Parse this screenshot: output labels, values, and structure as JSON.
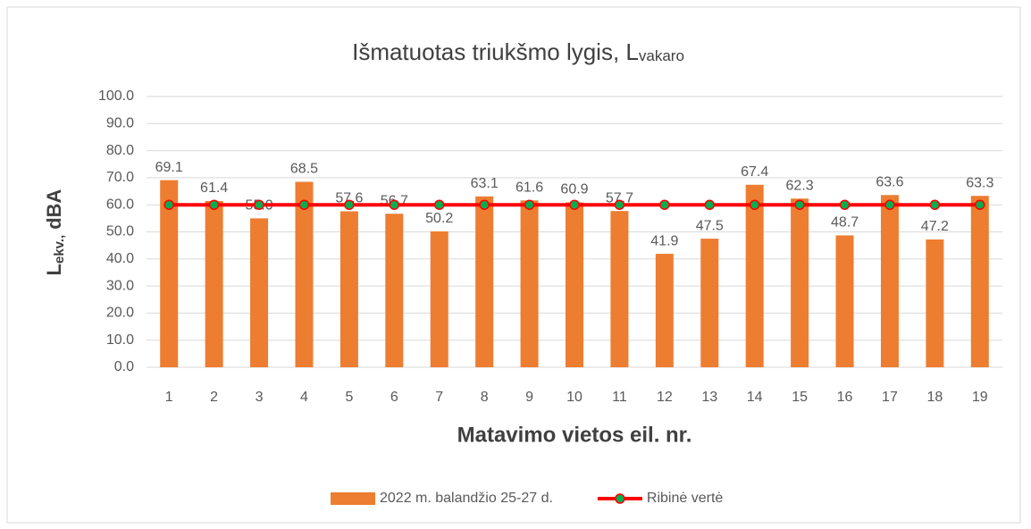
{
  "chart_data": {
    "type": "bar",
    "title": "Išmatuotas triukšmo lygis, L",
    "title_subscript": "vakaro",
    "y_label": "L",
    "y_label_subscript": "ekv.,",
    "y_label_unit": "dBA",
    "x_label": "Matavimo vietos eil. nr.",
    "categories": [
      "1",
      "2",
      "3",
      "4",
      "5",
      "6",
      "7",
      "8",
      "9",
      "10",
      "11",
      "12",
      "13",
      "14",
      "15",
      "16",
      "17",
      "18",
      "19"
    ],
    "series": [
      {
        "name": "2022 m. balandžio 25-27 d.",
        "type": "bar",
        "color": "#ed7d31",
        "values": [
          69.1,
          61.4,
          55.0,
          68.5,
          57.6,
          56.7,
          50.2,
          63.1,
          61.6,
          60.9,
          57.7,
          41.9,
          47.5,
          67.4,
          62.3,
          48.7,
          63.6,
          47.2,
          63.3
        ],
        "value_labels": [
          "69.1",
          "61.4",
          "55.0",
          "68.5",
          "57.6",
          "56.7",
          "50.2",
          "63.1",
          "61.6",
          "60.9",
          "57.7",
          "41.9",
          "47.5",
          "67.4",
          "62.3",
          "48.7",
          "63.6",
          "47.2",
          "63.3"
        ]
      },
      {
        "name": "Ribinė vertė",
        "type": "line",
        "color": "#ff0000",
        "marker_color": "#00b050",
        "values": [
          60,
          60,
          60,
          60,
          60,
          60,
          60,
          60,
          60,
          60,
          60,
          60,
          60,
          60,
          60,
          60,
          60,
          60,
          60
        ]
      }
    ],
    "ylim": [
      0,
      100
    ],
    "yticks": [
      {
        "value": 0,
        "label": "0.0"
      },
      {
        "value": 10,
        "label": "10.0"
      },
      {
        "value": 20,
        "label": "20.0"
      },
      {
        "value": 30,
        "label": "30.0"
      },
      {
        "value": 40,
        "label": "40.0"
      },
      {
        "value": 50,
        "label": "50.0"
      },
      {
        "value": 60,
        "label": "60.0"
      },
      {
        "value": 70,
        "label": "70.0"
      },
      {
        "value": 80,
        "label": "80.0"
      },
      {
        "value": 90,
        "label": "90.0"
      },
      {
        "value": 100,
        "label": "100.0"
      }
    ],
    "grid": true,
    "legend": "bottom"
  }
}
